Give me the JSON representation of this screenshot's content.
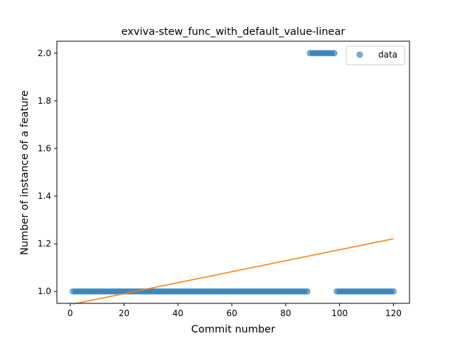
{
  "chart_data": {
    "type": "scatter",
    "title": "exviva-stew_func_with_default_value-linear",
    "xlabel": "Commit number",
    "ylabel": "Number of instance of a feature",
    "xlim": [
      -4.95,
      125.95
    ],
    "ylim": [
      0.95,
      2.05
    ],
    "xticks": [
      0,
      20,
      40,
      60,
      80,
      100,
      120
    ],
    "xtick_labels": [
      "0",
      "20",
      "40",
      "60",
      "80",
      "100",
      "120"
    ],
    "yticks": [
      1.0,
      1.2,
      1.4,
      1.6,
      1.8,
      2.0
    ],
    "ytick_labels": [
      "1.0",
      "1.2",
      "1.4",
      "1.6",
      "1.8",
      "2.0"
    ],
    "legend": {
      "position": "top-right",
      "entries": [
        "data"
      ]
    },
    "series": [
      {
        "name": "data",
        "kind": "scatter",
        "color": "#1f77b4",
        "x": [
          1,
          2,
          3,
          4,
          5,
          6,
          7,
          8,
          9,
          10,
          11,
          12,
          13,
          14,
          15,
          16,
          17,
          18,
          19,
          20,
          21,
          22,
          23,
          24,
          25,
          26,
          27,
          28,
          29,
          30,
          31,
          32,
          33,
          34,
          35,
          36,
          37,
          38,
          39,
          40,
          41,
          42,
          43,
          44,
          45,
          46,
          47,
          48,
          49,
          50,
          51,
          52,
          53,
          54,
          55,
          56,
          57,
          58,
          59,
          60,
          61,
          62,
          63,
          64,
          65,
          66,
          67,
          68,
          69,
          70,
          71,
          72,
          73,
          74,
          75,
          76,
          77,
          78,
          79,
          80,
          81,
          82,
          83,
          84,
          85,
          86,
          87,
          88,
          89,
          90,
          91,
          92,
          93,
          94,
          95,
          96,
          97,
          98,
          99,
          100,
          101,
          102,
          103,
          104,
          105,
          106,
          107,
          108,
          109,
          110,
          111,
          112,
          113,
          114,
          115,
          116,
          117,
          118,
          119,
          120
        ],
        "y": [
          1,
          1,
          1,
          1,
          1,
          1,
          1,
          1,
          1,
          1,
          1,
          1,
          1,
          1,
          1,
          1,
          1,
          1,
          1,
          1,
          1,
          1,
          1,
          1,
          1,
          1,
          1,
          1,
          1,
          1,
          1,
          1,
          1,
          1,
          1,
          1,
          1,
          1,
          1,
          1,
          1,
          1,
          1,
          1,
          1,
          1,
          1,
          1,
          1,
          1,
          1,
          1,
          1,
          1,
          1,
          1,
          1,
          1,
          1,
          1,
          1,
          1,
          1,
          1,
          1,
          1,
          1,
          1,
          1,
          1,
          1,
          1,
          1,
          1,
          1,
          1,
          1,
          1,
          1,
          1,
          1,
          1,
          1,
          1,
          1,
          1,
          1,
          1,
          2,
          2,
          2,
          2,
          2,
          2,
          2,
          2,
          2,
          2,
          1,
          1,
          1,
          1,
          1,
          1,
          1,
          1,
          1,
          1,
          1,
          1,
          1,
          1,
          1,
          1,
          1,
          1,
          1,
          1,
          1,
          1
        ]
      },
      {
        "kind": "line",
        "color": "#ff7f0e",
        "x": [
          1,
          120
        ],
        "y": [
          0.947,
          1.221
        ]
      }
    ]
  }
}
